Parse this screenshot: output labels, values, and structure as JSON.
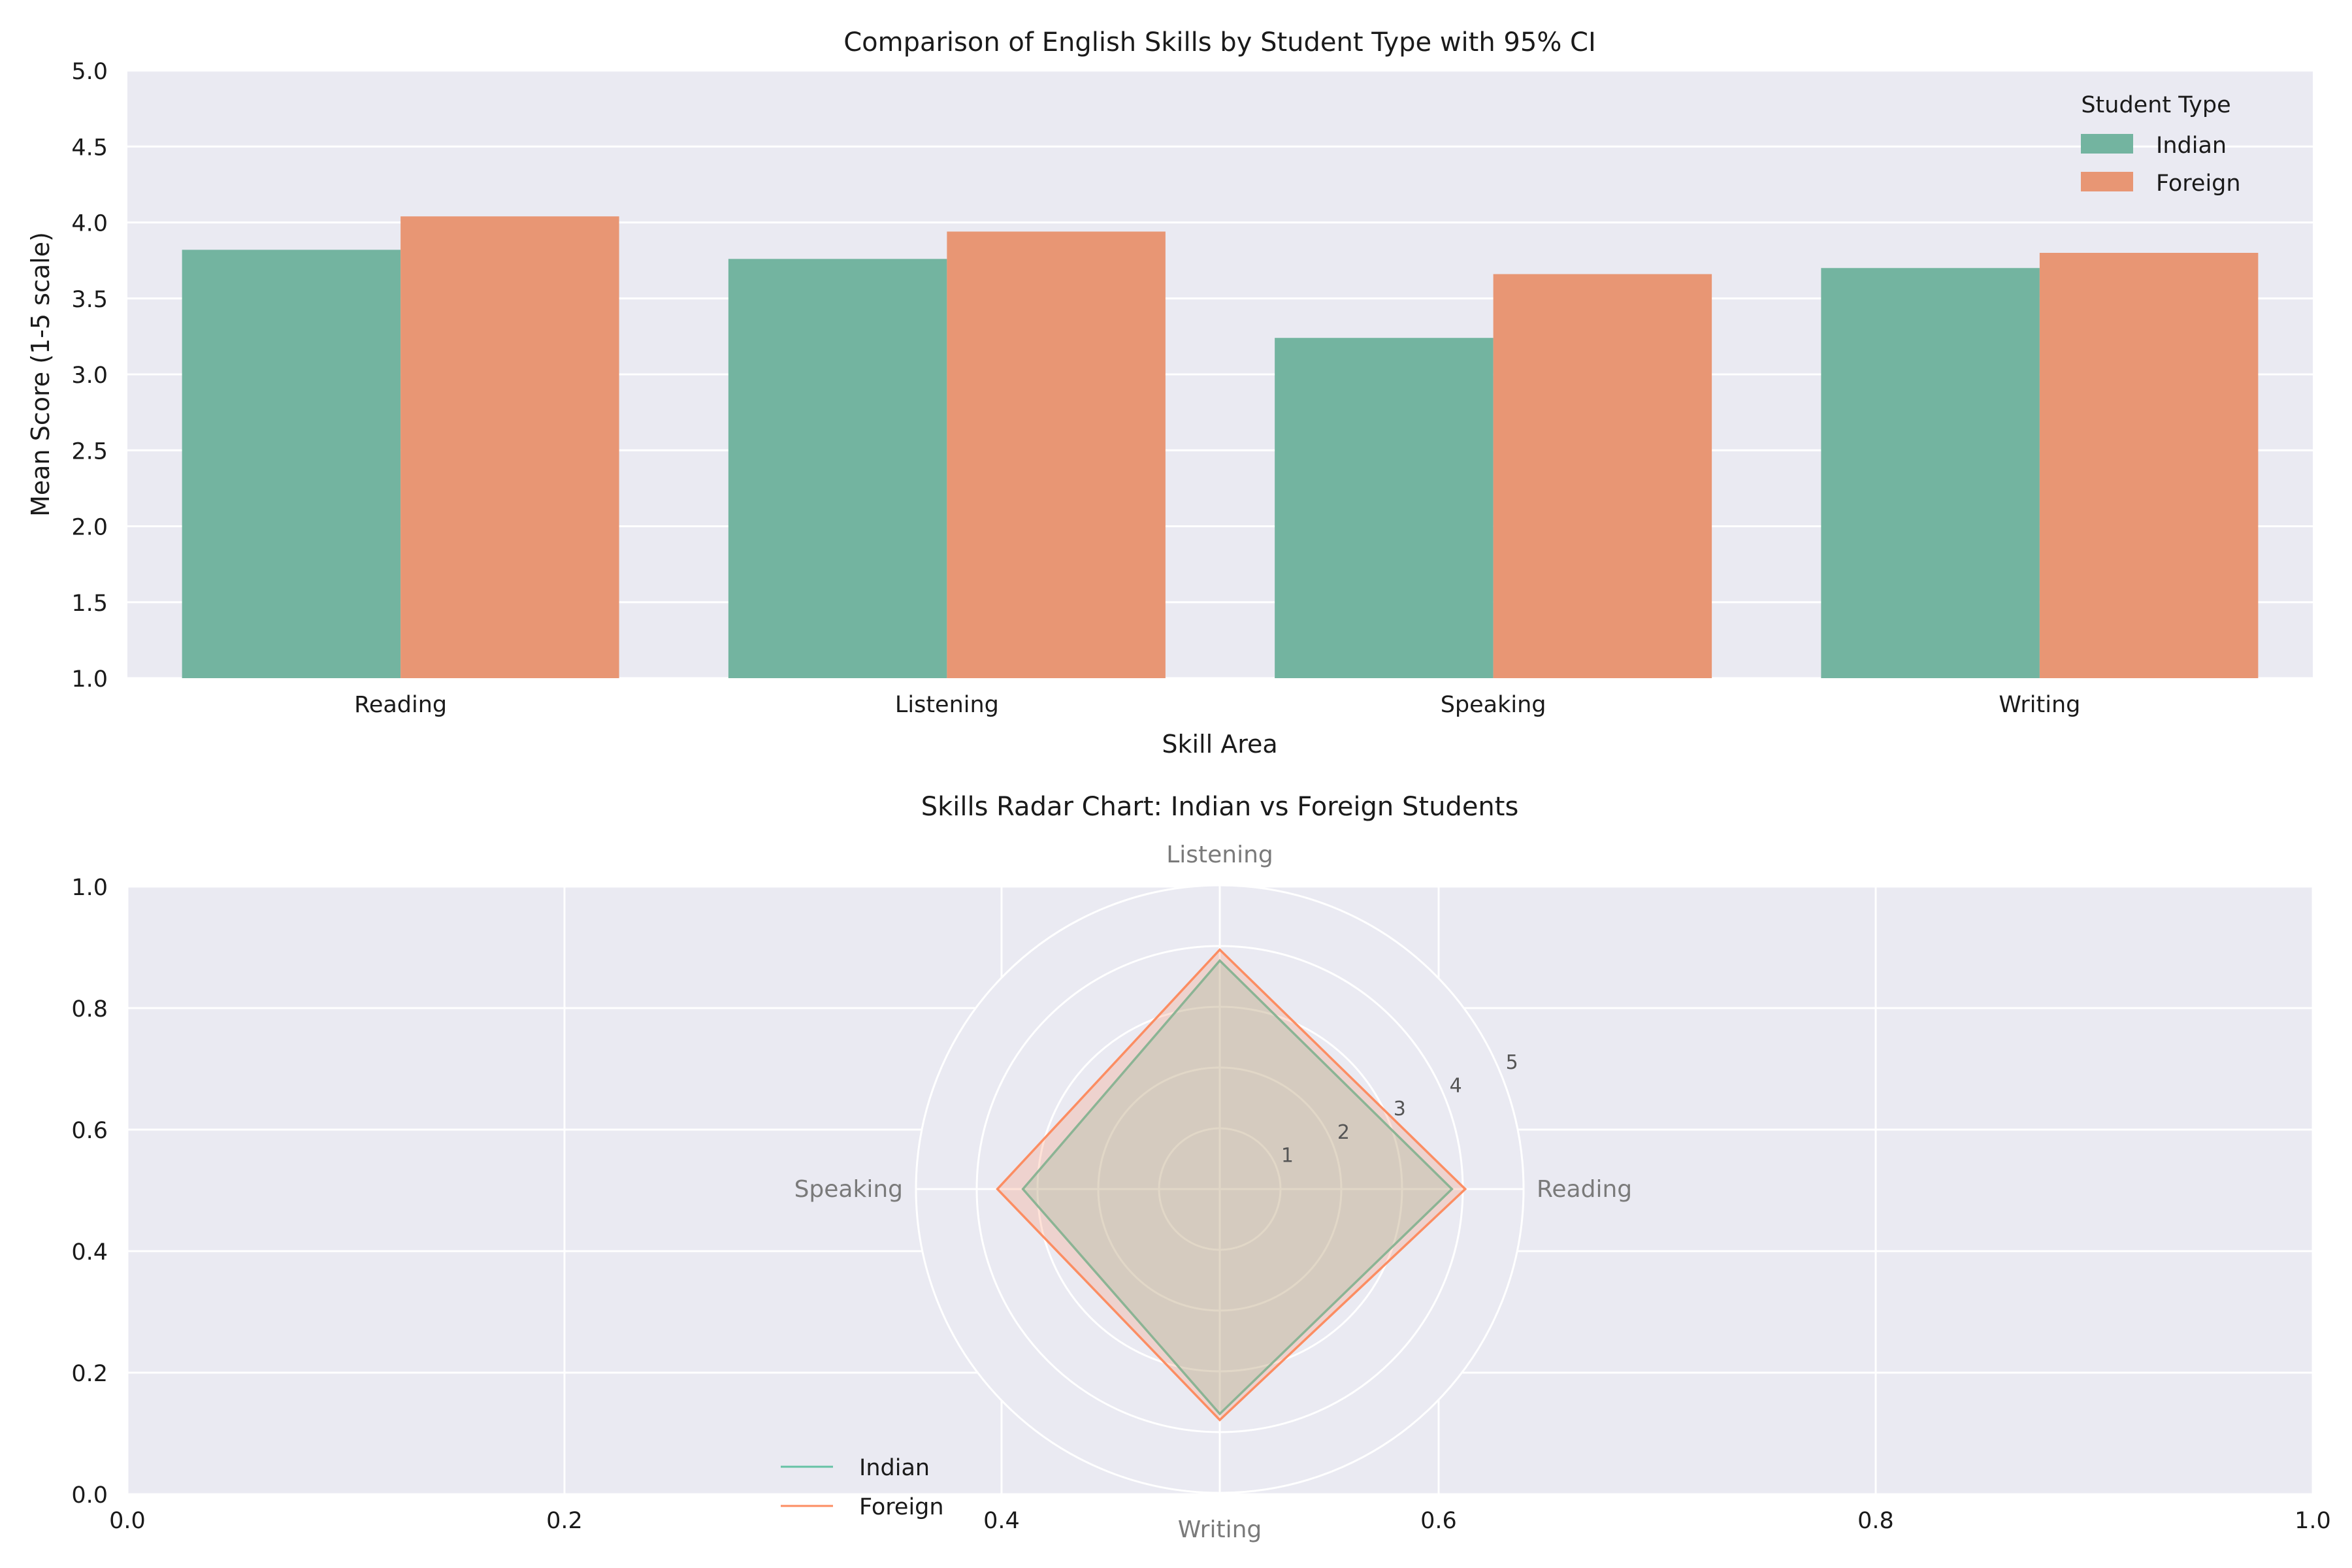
{
  "chart_data": [
    {
      "type": "bar",
      "title": "Comparison of English Skills by Student Type with 95% CI",
      "xlabel": "Skill Area",
      "ylabel": "Mean Score (1-5 scale)",
      "categories": [
        "Reading",
        "Listening",
        "Speaking",
        "Writing"
      ],
      "series": [
        {
          "name": "Indian",
          "values": [
            3.82,
            3.76,
            3.24,
            3.7
          ]
        },
        {
          "name": "Foreign",
          "values": [
            4.04,
            3.94,
            3.66,
            3.8
          ]
        }
      ],
      "ylim": [
        1.0,
        5.0
      ],
      "yticks": [
        "1.0",
        "1.5",
        "2.0",
        "2.5",
        "3.0",
        "3.5",
        "4.0",
        "4.5",
        "5.0"
      ],
      "legend": {
        "title": "Student Type",
        "placement": "top-right"
      },
      "colors": {
        "Indian": "#66c2a5",
        "Foreign": "#fc8d62"
      },
      "grid": true
    },
    {
      "type": "radar",
      "title": "Skills Radar Chart: Indian vs Foreign Students",
      "axes": [
        "Reading",
        "Listening",
        "Speaking",
        "Writing"
      ],
      "radial_ticks": [
        "1",
        "2",
        "3",
        "4",
        "5"
      ],
      "radial_lim": [
        0,
        5
      ],
      "series": [
        {
          "name": "Indian",
          "values": [
            3.82,
            3.76,
            3.24,
            3.7
          ]
        },
        {
          "name": "Foreign",
          "values": [
            4.04,
            3.94,
            3.66,
            3.8
          ]
        }
      ],
      "colors": {
        "Indian": "#66c2a5",
        "Foreign": "#fc8d62"
      },
      "legend": {
        "placement": "lower-left"
      },
      "cartesian_frame": {
        "xlim": [
          0.0,
          1.0
        ],
        "ylim": [
          0.0,
          1.0
        ],
        "xticks": [
          "0.0",
          "0.2",
          "0.4",
          "0.6",
          "0.8",
          "1.0"
        ],
        "yticks": [
          "0.0",
          "0.2",
          "0.4",
          "0.6",
          "0.8",
          "1.0"
        ]
      },
      "grid": true
    }
  ]
}
